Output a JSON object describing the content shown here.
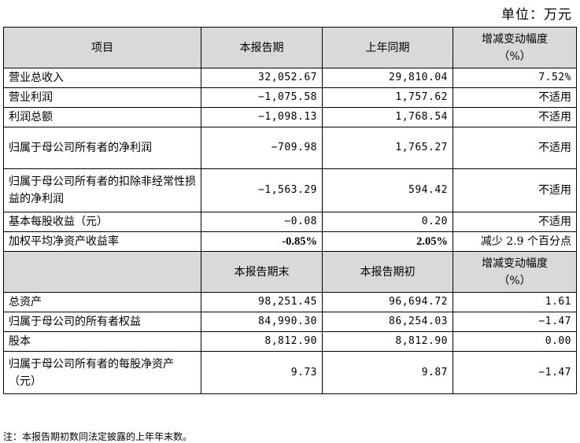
{
  "unit_label": "单位：万元",
  "section1": {
    "headers": [
      "项目",
      "本报告期",
      "上年同期",
      "增减变动幅度",
      "（%）"
    ],
    "rows": [
      {
        "item": "营业总收入",
        "current": "32,052.67",
        "previous": "29,810.04",
        "change": "7.52%"
      },
      {
        "item": "营业利润",
        "current": "−1,075.58",
        "previous": "1,757.62",
        "change": "不适用"
      },
      {
        "item": "利润总额",
        "current": "−1,098.13",
        "previous": "1,768.54",
        "change": "不适用"
      },
      {
        "item": "归属于母公司所有者的净利润",
        "current": "−709.98",
        "previous": "1,765.27",
        "change": "不适用"
      },
      {
        "item": "归属于母公司所有者的扣除非经常性损益的净利润",
        "current": "−1,563.29",
        "previous": "594.42",
        "change": "不适用"
      },
      {
        "item": "基本每股收益（元）",
        "current": "−0.08",
        "previous": "0.20",
        "change": "不适用"
      },
      {
        "item": "加权平均净资产收益率",
        "current": "-0.85%",
        "previous": "2.05%",
        "change": "减少 2.9 个百分点"
      }
    ]
  },
  "section2": {
    "headers": [
      "",
      "本报告期末",
      "本报告期初",
      "增减变动幅度",
      "（%）"
    ],
    "rows": [
      {
        "item": "总资产",
        "current": "98,251.45",
        "previous": "96,694.72",
        "change": "1.61"
      },
      {
        "item": "归属于母公司的所有者权益",
        "current": "84,990.30",
        "previous": "86,254.03",
        "change": "−1.47"
      },
      {
        "item": "股本",
        "current": "8,812.90",
        "previous": "8,812.90",
        "change": "0.00"
      },
      {
        "item": "归属于母公司所有者的每股净资产（元）",
        "current": "9.73",
        "previous": "9.87",
        "change": "−1.47"
      }
    ]
  },
  "footnote": "注：本报告期初数同法定披露的上年年末数。"
}
